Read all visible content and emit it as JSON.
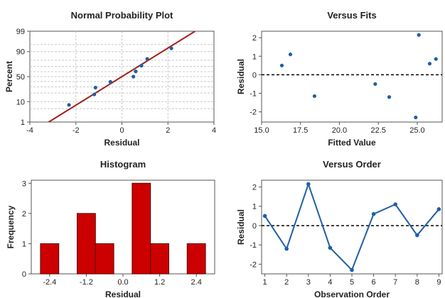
{
  "colors": {
    "point": "#1f5fa5",
    "fit_line": "#a0201c",
    "bar": "#cc0000",
    "bar_edge": "#5a0000",
    "order_line": "#1f5fa5"
  },
  "chart_data": [
    {
      "id": "npp",
      "type": "scatter",
      "title": "Normal Probability Plot",
      "xlabel": "Residual",
      "ylabel": "Percent",
      "xlim": [
        -4,
        4
      ],
      "x_ticks": [
        -4,
        -2,
        0,
        2,
        4
      ],
      "x_tick_labels": [
        "-4",
        "-2",
        "0",
        "2",
        "4"
      ],
      "y_scale": "normal-probability",
      "y_ticks": [
        1,
        10,
        50,
        90,
        99
      ],
      "y_tick_labels": [
        "1",
        "10",
        "50",
        "90",
        "99"
      ],
      "y_grid_percent": [
        1,
        5,
        10,
        20,
        30,
        40,
        50,
        60,
        70,
        80,
        90,
        95,
        99
      ],
      "grid": true,
      "fit_line": [
        [
          -3.18,
          1
        ],
        [
          3.18,
          99
        ]
      ],
      "points": [
        {
          "x": -2.3,
          "y": 7.4
        },
        {
          "x": -1.2,
          "y": 18.1
        },
        {
          "x": -1.15,
          "y": 28.7
        },
        {
          "x": -0.5,
          "y": 39.4
        },
        {
          "x": 0.5,
          "y": 50
        },
        {
          "x": 0.6,
          "y": 60.6
        },
        {
          "x": 0.85,
          "y": 71.3
        },
        {
          "x": 1.1,
          "y": 81.9
        },
        {
          "x": 2.15,
          "y": 92.6
        }
      ]
    },
    {
      "id": "fits",
      "type": "scatter",
      "title": "Versus Fits",
      "xlabel": "Fitted Value",
      "ylabel": "Residual",
      "xlim": [
        15,
        26.6
      ],
      "ylim": [
        -2.55,
        2.35
      ],
      "x_ticks": [
        15,
        17.5,
        20,
        22.5,
        25
      ],
      "x_tick_labels": [
        "15.0",
        "17.5",
        "20.0",
        "22.5",
        "25.0"
      ],
      "y_ticks": [
        -2,
        -1,
        0,
        1,
        2
      ],
      "y_tick_labels": [
        "-2",
        "-1",
        "0",
        "1",
        "2"
      ],
      "reference_line": 0,
      "points": [
        {
          "x": 16.3,
          "y": 0.5
        },
        {
          "x": 16.85,
          "y": 1.1
        },
        {
          "x": 18.4,
          "y": -1.15
        },
        {
          "x": 22.3,
          "y": -0.5
        },
        {
          "x": 23.2,
          "y": -1.2
        },
        {
          "x": 24.9,
          "y": -2.3
        },
        {
          "x": 25.1,
          "y": 2.15
        },
        {
          "x": 25.8,
          "y": 0.6
        },
        {
          "x": 26.2,
          "y": 0.85
        }
      ]
    },
    {
      "id": "hist",
      "type": "bar",
      "title": "Histogram",
      "xlabel": "Residual",
      "ylabel": "Frequency",
      "xlim": [
        -3.0,
        3.0
      ],
      "ylim": [
        0,
        3.1
      ],
      "x_ticks": [
        -2.4,
        -1.2,
        0.0,
        1.2,
        2.4
      ],
      "x_tick_labels": [
        "-2.4",
        "-1.2",
        "0.0",
        "1.2",
        "2.4"
      ],
      "y_ticks": [
        0,
        1,
        2,
        3
      ],
      "y_tick_labels": [
        "0",
        "1",
        "2",
        "3"
      ],
      "bin_width": 0.6,
      "bins": [
        {
          "center": -2.4,
          "count": 1
        },
        {
          "center": -1.8,
          "count": 0
        },
        {
          "center": -1.2,
          "count": 2
        },
        {
          "center": -0.6,
          "count": 1
        },
        {
          "center": 0.0,
          "count": 0
        },
        {
          "center": 0.6,
          "count": 3
        },
        {
          "center": 1.2,
          "count": 1
        },
        {
          "center": 1.8,
          "count": 0
        },
        {
          "center": 2.4,
          "count": 1
        }
      ]
    },
    {
      "id": "order",
      "type": "line",
      "title": "Versus Order",
      "xlabel": "Observation Order",
      "ylabel": "Residual",
      "xlim": [
        0.85,
        9.15
      ],
      "ylim": [
        -2.5,
        2.35
      ],
      "x_ticks": [
        1,
        2,
        3,
        4,
        5,
        6,
        7,
        8,
        9
      ],
      "x_tick_labels": [
        "1",
        "2",
        "3",
        "4",
        "5",
        "6",
        "7",
        "8",
        "9"
      ],
      "y_ticks": [
        -2,
        -1,
        0,
        1,
        2
      ],
      "y_tick_labels": [
        "-2",
        "-1",
        "0",
        "1",
        "2"
      ],
      "reference_line": 0,
      "x": [
        1,
        2,
        3,
        4,
        5,
        6,
        7,
        8,
        9
      ],
      "values": [
        0.5,
        -1.2,
        2.15,
        -1.15,
        -2.3,
        0.6,
        1.1,
        -0.5,
        0.85
      ]
    }
  ]
}
